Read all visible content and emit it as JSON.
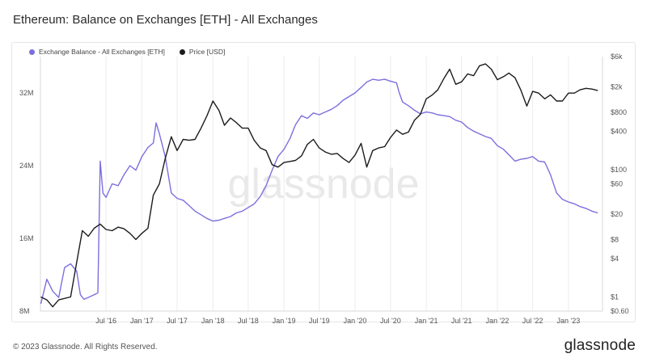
{
  "title": "Ethereum: Balance on Exchanges [ETH] - All Exchanges",
  "footer": "© 2023 Glassnode. All Rights Reserved.",
  "brand": "glassnode",
  "watermark": "glassnode",
  "colors": {
    "balance": "#7b6fde",
    "price": "#1c1c1c",
    "grid": "#ececec",
    "watermark": "#e9e9e9"
  },
  "chart_data": {
    "type": "line",
    "grid": "vertical",
    "legend": "top-left",
    "series": [
      {
        "name": "Exchange Balance - All Exchanges [ETH]",
        "axis": "left",
        "points": [
          [
            "2015-08-01",
            8.8
          ],
          [
            "2015-09-01",
            11.5
          ],
          [
            "2015-10-01",
            10.2
          ],
          [
            "2015-11-01",
            9.5
          ],
          [
            "2015-12-01",
            12.8
          ],
          [
            "2016-01-01",
            13.2
          ],
          [
            "2016-02-01",
            12.4
          ],
          [
            "2016-02-20",
            9.8
          ],
          [
            "2016-03-10",
            9.3
          ],
          [
            "2016-04-01",
            9.5
          ],
          [
            "2016-05-01",
            9.8
          ],
          [
            "2016-05-20",
            10.0
          ],
          [
            "2016-06-01",
            24.5
          ],
          [
            "2016-06-15",
            21.0
          ],
          [
            "2016-07-01",
            20.5
          ],
          [
            "2016-08-01",
            22.0
          ],
          [
            "2016-09-01",
            21.8
          ],
          [
            "2016-10-01",
            23.0
          ],
          [
            "2016-11-01",
            24.0
          ],
          [
            "2016-12-01",
            23.5
          ],
          [
            "2017-01-01",
            25.0
          ],
          [
            "2017-02-01",
            26.0
          ],
          [
            "2017-03-01",
            26.5
          ],
          [
            "2017-03-15",
            28.7
          ],
          [
            "2017-04-01",
            27.5
          ],
          [
            "2017-05-01",
            25.0
          ],
          [
            "2017-06-01",
            21.0
          ],
          [
            "2017-07-01",
            20.4
          ],
          [
            "2017-08-01",
            20.2
          ],
          [
            "2017-09-01",
            19.6
          ],
          [
            "2017-10-01",
            19.0
          ],
          [
            "2017-11-01",
            18.6
          ],
          [
            "2017-12-01",
            18.2
          ],
          [
            "2018-01-01",
            17.9
          ],
          [
            "2018-02-01",
            18.0
          ],
          [
            "2018-03-01",
            18.2
          ],
          [
            "2018-04-01",
            18.4
          ],
          [
            "2018-05-01",
            18.8
          ],
          [
            "2018-06-01",
            19.0
          ],
          [
            "2018-07-01",
            19.4
          ],
          [
            "2018-08-01",
            19.8
          ],
          [
            "2018-09-01",
            20.6
          ],
          [
            "2018-10-01",
            21.8
          ],
          [
            "2018-11-01",
            23.5
          ],
          [
            "2018-12-01",
            25.0
          ],
          [
            "2019-01-01",
            25.8
          ],
          [
            "2019-02-01",
            27.0
          ],
          [
            "2019-03-01",
            28.5
          ],
          [
            "2019-04-01",
            29.5
          ],
          [
            "2019-05-01",
            29.2
          ],
          [
            "2019-06-01",
            29.8
          ],
          [
            "2019-07-01",
            29.6
          ],
          [
            "2019-08-01",
            29.9
          ],
          [
            "2019-09-01",
            30.2
          ],
          [
            "2019-10-01",
            30.6
          ],
          [
            "2019-11-01",
            31.2
          ],
          [
            "2019-12-01",
            31.6
          ],
          [
            "2020-01-01",
            32.0
          ],
          [
            "2020-02-01",
            32.6
          ],
          [
            "2020-03-01",
            33.2
          ],
          [
            "2020-04-01",
            33.5
          ],
          [
            "2020-05-01",
            33.4
          ],
          [
            "2020-06-01",
            33.5
          ],
          [
            "2020-07-01",
            33.3
          ],
          [
            "2020-08-01",
            33.1
          ],
          [
            "2020-08-15",
            32.0
          ],
          [
            "2020-09-01",
            31.0
          ],
          [
            "2020-10-01",
            30.6
          ],
          [
            "2020-11-01",
            30.1
          ],
          [
            "2020-12-01",
            29.7
          ],
          [
            "2021-01-01",
            29.9
          ],
          [
            "2021-02-01",
            29.8
          ],
          [
            "2021-03-01",
            29.6
          ],
          [
            "2021-04-01",
            29.5
          ],
          [
            "2021-05-01",
            29.4
          ],
          [
            "2021-06-01",
            29.0
          ],
          [
            "2021-07-01",
            28.8
          ],
          [
            "2021-08-01",
            28.2
          ],
          [
            "2021-09-01",
            27.8
          ],
          [
            "2021-10-01",
            27.5
          ],
          [
            "2021-11-01",
            27.2
          ],
          [
            "2021-12-01",
            27.0
          ],
          [
            "2022-01-01",
            26.2
          ],
          [
            "2022-02-01",
            25.8
          ],
          [
            "2022-03-01",
            25.2
          ],
          [
            "2022-04-01",
            24.5
          ],
          [
            "2022-05-01",
            24.7
          ],
          [
            "2022-06-01",
            24.8
          ],
          [
            "2022-07-01",
            25.0
          ],
          [
            "2022-08-01",
            24.5
          ],
          [
            "2022-09-01",
            24.4
          ],
          [
            "2022-10-01",
            23.0
          ],
          [
            "2022-11-01",
            21.0
          ],
          [
            "2022-12-01",
            20.3
          ],
          [
            "2023-01-01",
            20.0
          ],
          [
            "2023-02-01",
            19.8
          ],
          [
            "2023-03-01",
            19.5
          ],
          [
            "2023-04-01",
            19.3
          ],
          [
            "2023-05-01",
            19.0
          ],
          [
            "2023-06-01",
            18.8
          ]
        ]
      },
      {
        "name": "Price [USD]",
        "axis": "right",
        "points": [
          [
            "2015-08-01",
            1.0
          ],
          [
            "2015-09-01",
            0.9
          ],
          [
            "2015-10-01",
            0.7
          ],
          [
            "2015-11-01",
            0.9
          ],
          [
            "2016-01-01",
            1.0
          ],
          [
            "2016-02-01",
            3.5
          ],
          [
            "2016-03-01",
            11.0
          ],
          [
            "2016-04-01",
            9.0
          ],
          [
            "2016-05-01",
            12.0
          ],
          [
            "2016-06-01",
            14.0
          ],
          [
            "2016-07-01",
            11.5
          ],
          [
            "2016-08-01",
            11.0
          ],
          [
            "2016-09-01",
            12.5
          ],
          [
            "2016-10-01",
            11.8
          ],
          [
            "2016-11-01",
            10.0
          ],
          [
            "2016-12-01",
            8.0
          ],
          [
            "2017-01-01",
            10.0
          ],
          [
            "2017-02-01",
            12.0
          ],
          [
            "2017-03-01",
            40.0
          ],
          [
            "2017-04-01",
            60.0
          ],
          [
            "2017-05-01",
            150.0
          ],
          [
            "2017-06-01",
            330.0
          ],
          [
            "2017-07-01",
            200.0
          ],
          [
            "2017-08-01",
            300.0
          ],
          [
            "2017-09-01",
            290.0
          ],
          [
            "2017-10-01",
            300.0
          ],
          [
            "2017-11-01",
            450.0
          ],
          [
            "2017-12-01",
            700.0
          ],
          [
            "2018-01-01",
            1200.0
          ],
          [
            "2018-02-01",
            850.0
          ],
          [
            "2018-03-01",
            500.0
          ],
          [
            "2018-04-01",
            650.0
          ],
          [
            "2018-05-01",
            550.0
          ],
          [
            "2018-06-01",
            450.0
          ],
          [
            "2018-07-01",
            450.0
          ],
          [
            "2018-08-01",
            290.0
          ],
          [
            "2018-09-01",
            220.0
          ],
          [
            "2018-10-01",
            200.0
          ],
          [
            "2018-11-01",
            120.0
          ],
          [
            "2018-12-01",
            110.0
          ],
          [
            "2019-01-01",
            130.0
          ],
          [
            "2019-02-01",
            135.0
          ],
          [
            "2019-03-01",
            140.0
          ],
          [
            "2019-04-01",
            165.0
          ],
          [
            "2019-05-01",
            250.0
          ],
          [
            "2019-06-01",
            300.0
          ],
          [
            "2019-07-01",
            220.0
          ],
          [
            "2019-08-01",
            190.0
          ],
          [
            "2019-09-01",
            175.0
          ],
          [
            "2019-10-01",
            180.0
          ],
          [
            "2019-11-01",
            150.0
          ],
          [
            "2019-12-01",
            130.0
          ],
          [
            "2020-01-01",
            170.0
          ],
          [
            "2020-02-01",
            260.0
          ],
          [
            "2020-03-01",
            110.0
          ],
          [
            "2020-04-01",
            200.0
          ],
          [
            "2020-05-01",
            220.0
          ],
          [
            "2020-06-01",
            230.0
          ],
          [
            "2020-07-01",
            320.0
          ],
          [
            "2020-08-01",
            420.0
          ],
          [
            "2020-09-01",
            360.0
          ],
          [
            "2020-10-01",
            390.0
          ],
          [
            "2020-11-01",
            600.0
          ],
          [
            "2020-12-01",
            740.0
          ],
          [
            "2021-01-01",
            1300.0
          ],
          [
            "2021-02-01",
            1500.0
          ],
          [
            "2021-03-01",
            1800.0
          ],
          [
            "2021-04-01",
            2700.0
          ],
          [
            "2021-05-01",
            3800.0
          ],
          [
            "2021-06-01",
            2200.0
          ],
          [
            "2021-07-01",
            2400.0
          ],
          [
            "2021-08-01",
            3200.0
          ],
          [
            "2021-09-01",
            3000.0
          ],
          [
            "2021-10-01",
            4300.0
          ],
          [
            "2021-11-01",
            4600.0
          ],
          [
            "2021-12-01",
            3800.0
          ],
          [
            "2022-01-01",
            2600.0
          ],
          [
            "2022-02-01",
            2900.0
          ],
          [
            "2022-03-01",
            3300.0
          ],
          [
            "2022-04-01",
            2800.0
          ],
          [
            "2022-05-01",
            1800.0
          ],
          [
            "2022-06-01",
            1000.0
          ],
          [
            "2022-07-01",
            1700.0
          ],
          [
            "2022-08-01",
            1600.0
          ],
          [
            "2022-09-01",
            1300.0
          ],
          [
            "2022-10-01",
            1500.0
          ],
          [
            "2022-11-01",
            1200.0
          ],
          [
            "2022-12-01",
            1200.0
          ],
          [
            "2023-01-01",
            1600.0
          ],
          [
            "2023-02-01",
            1600.0
          ],
          [
            "2023-03-01",
            1800.0
          ],
          [
            "2023-04-01",
            1900.0
          ],
          [
            "2023-05-01",
            1850.0
          ],
          [
            "2023-06-01",
            1750.0
          ]
        ]
      }
    ],
    "x_range": [
      "2015-07-30",
      "2023-06-25"
    ],
    "x_ticks": [
      {
        "label": "Jul '16",
        "date": "2016-07-01"
      },
      {
        "label": "Jan '17",
        "date": "2017-01-01"
      },
      {
        "label": "Jul '17",
        "date": "2017-07-01"
      },
      {
        "label": "Jan '18",
        "date": "2018-01-01"
      },
      {
        "label": "Jul '18",
        "date": "2018-07-01"
      },
      {
        "label": "Jan '19",
        "date": "2019-01-01"
      },
      {
        "label": "Jul '19",
        "date": "2019-07-01"
      },
      {
        "label": "Jan '20",
        "date": "2020-01-01"
      },
      {
        "label": "Jul '20",
        "date": "2020-07-01"
      },
      {
        "label": "Jan '21",
        "date": "2021-01-01"
      },
      {
        "label": "Jul '21",
        "date": "2021-07-01"
      },
      {
        "label": "Jan '22",
        "date": "2022-01-01"
      },
      {
        "label": "Jul '22",
        "date": "2022-07-01"
      },
      {
        "label": "Jan '23",
        "date": "2023-01-01"
      }
    ],
    "y_left": {
      "range": [
        8,
        36
      ],
      "ticks": [
        {
          "label": "8M",
          "value": 8
        },
        {
          "label": "16M",
          "value": 16
        },
        {
          "label": "24M",
          "value": 24
        },
        {
          "label": "32M",
          "value": 32
        }
      ]
    },
    "y_right": {
      "scale": "log",
      "range": [
        0.6,
        6000
      ],
      "ticks": [
        {
          "label": "$0.60",
          "value": 0.6
        },
        {
          "label": "$1",
          "value": 1
        },
        {
          "label": "$4",
          "value": 4
        },
        {
          "label": "$8",
          "value": 8
        },
        {
          "label": "$20",
          "value": 20
        },
        {
          "label": "$60",
          "value": 60
        },
        {
          "label": "$100",
          "value": 100
        },
        {
          "label": "$400",
          "value": 400
        },
        {
          "label": "$800",
          "value": 800
        },
        {
          "label": "$2k",
          "value": 2000
        },
        {
          "label": "$6k",
          "value": 6000
        }
      ]
    }
  }
}
